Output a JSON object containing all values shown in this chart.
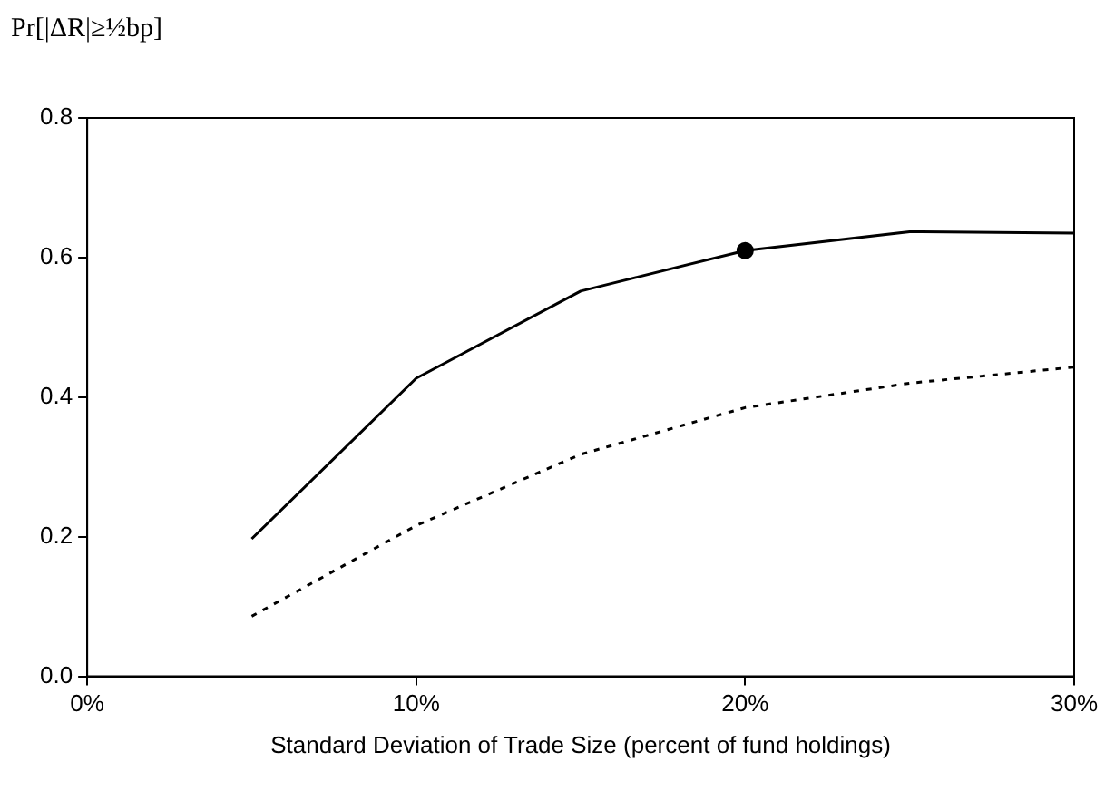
{
  "chart_data": {
    "type": "line",
    "xlabel": "Standard Deviation of Trade Size (percent of fund holdings)",
    "ylabel": "Pr[|ΔR|≥½bp]",
    "x": [
      5,
      10,
      15,
      20,
      25,
      30
    ],
    "series": [
      {
        "color": "#000000",
        "line_style": "solid",
        "values": [
          0.197,
          0.427,
          0.552,
          0.61,
          0.637,
          0.635
        ]
      },
      {
        "color": "#000000",
        "line_style": "dotted",
        "values": [
          0.086,
          0.216,
          0.318,
          0.385,
          0.42,
          0.443
        ]
      },
      {
        "type": "scatter",
        "color": "#000000",
        "marker": "circle",
        "x": [
          20
        ],
        "values": [
          0.61
        ]
      }
    ],
    "marker": "none",
    "grid": false,
    "xlim": [
      0,
      30
    ],
    "xticks": [
      {
        "value": 0,
        "label": "0%"
      },
      {
        "value": 10,
        "label": "10%"
      },
      {
        "value": 20,
        "label": "20%"
      },
      {
        "value": 30,
        "label": "30%"
      }
    ],
    "ylim": [
      0,
      0.8
    ],
    "yticks": [
      {
        "value": 0,
        "label": "0.0"
      },
      {
        "value": 0.2,
        "label": "0.2"
      },
      {
        "value": 0.4,
        "label": "0.4"
      },
      {
        "value": 0.6,
        "label": "0.6"
      },
      {
        "value": 0.8,
        "label": "0.8"
      }
    ]
  }
}
